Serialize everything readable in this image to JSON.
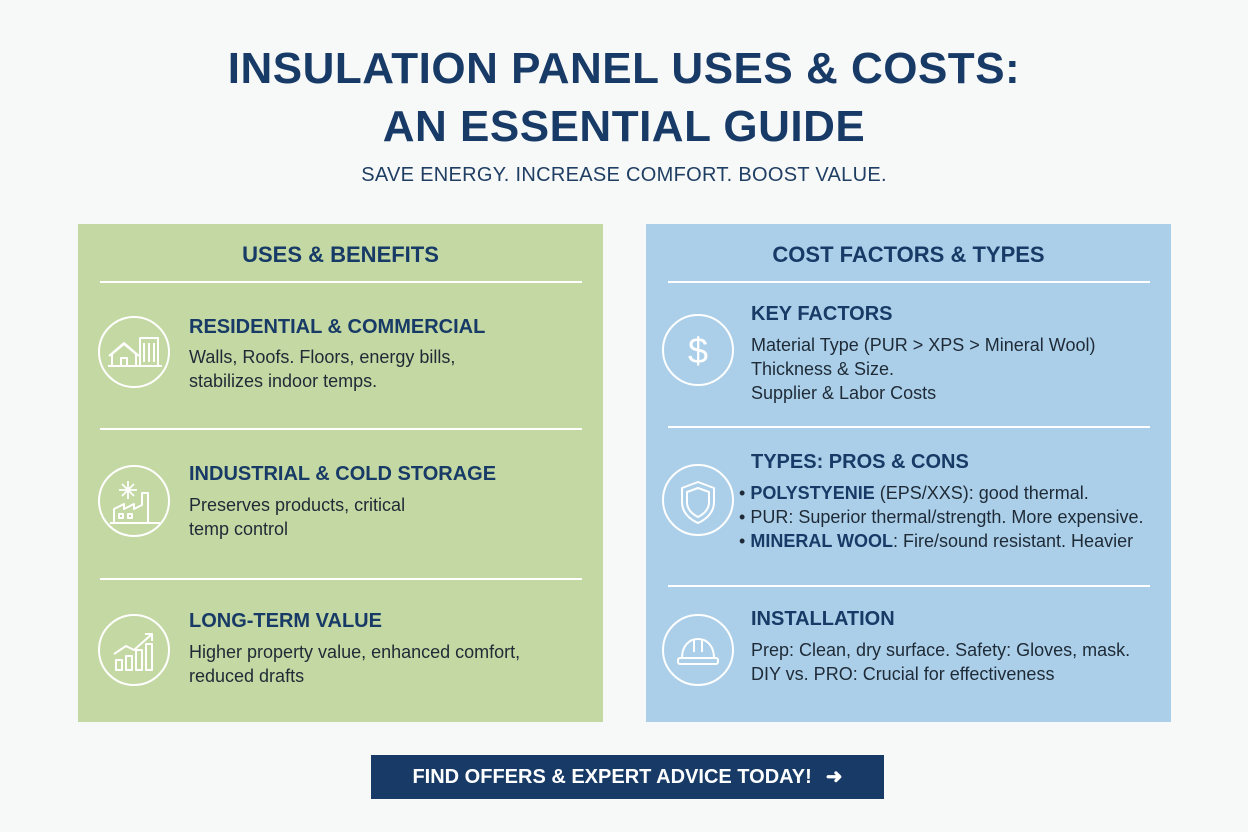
{
  "header": {
    "title_line1": "INSULATION PANEL USES & COSTS:",
    "title_line2": "AN ESSENTIAL GUIDE",
    "subtitle": "SAVE ENERGY. INCREASE COMFORT. BOOST VALUE."
  },
  "uses_panel": {
    "heading": "USES & BENEFITS",
    "color": "#c3d8a2",
    "sections": [
      {
        "icon": "house-building-icon",
        "title": "RESIDENTIAL & COMMERCIAL",
        "lines": [
          "Walls, Roofs. Floors, energy bills,",
          "stabilizes indoor temps."
        ]
      },
      {
        "icon": "snowflake-factory-icon",
        "title": "INDUSTRIAL & COLD STORAGE",
        "lines": [
          "Preserves products, critical",
          "temp control"
        ]
      },
      {
        "icon": "growth-chart-icon",
        "title": "LONG-TERM VALUE",
        "lines": [
          "Higher property value, enhanced comfort,",
          "reduced drafts"
        ]
      }
    ]
  },
  "cost_panel": {
    "heading": "COST FACTORS & TYPES",
    "color": "#abcfe9",
    "key_factors": {
      "icon": "dollar-icon",
      "title": "KEY FACTORS",
      "lines": [
        "Material Type (PUR > XPS > Mineral Wool)",
        "Thickness & Size.",
        "Supplier & Labor Costs"
      ]
    },
    "types": {
      "icon": "shield-icon",
      "title": "TYPES: PROS & CONS",
      "items": [
        {
          "bullet": "•",
          "strong": "POLYSTYENIE",
          "text": " (EPS/XXS): good thermal."
        },
        {
          "bullet": "•",
          "strong": "",
          "text": "PUR: Superior thermal/strength. More expensive."
        },
        {
          "bullet": "•",
          "strong": "MINERAL WOOL",
          "text": ": Fire/sound resistant. Heavier"
        }
      ]
    },
    "installation": {
      "icon": "hard-hat-icon",
      "title": "INSTALLATION",
      "lines": [
        "Prep: Clean, dry surface. Safety: Gloves, mask.",
        "DIY vs. PRO: Crucial for effectiveness"
      ]
    }
  },
  "cta": {
    "label": "FIND OFFERS & EXPERT ADVICE TODAY!",
    "arrow": "➜",
    "color": "#173a66"
  }
}
